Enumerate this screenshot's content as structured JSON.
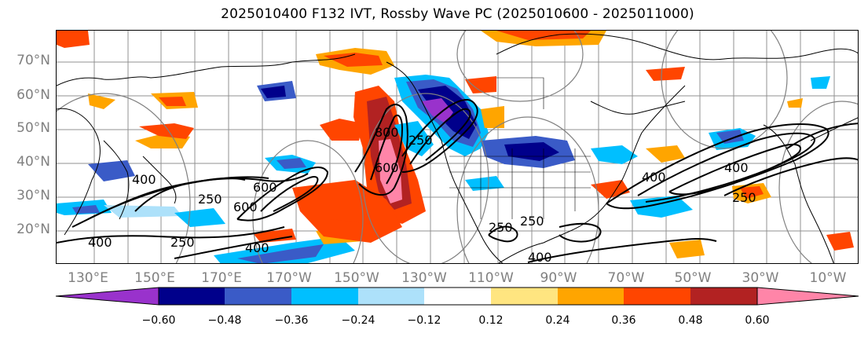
{
  "title": "2025010400 F132 IVT, Rossby Wave PC (2025010600 - 2025011000)",
  "latitude_labels": [
    "70°N",
    "60°N",
    "50°N",
    "40°N",
    "30°N",
    "20°N"
  ],
  "longitude_labels": [
    "130°E",
    "150°E",
    "170°E",
    "170°W",
    "150°W",
    "130°W",
    "110°W",
    "90°W",
    "70°W",
    "50°W",
    "30°W",
    "10°W"
  ],
  "contour_labels": [
    "400",
    "250",
    "600",
    "400",
    "250",
    "600",
    "800",
    "250",
    "400",
    "250",
    "400",
    "250",
    "400",
    "400",
    "250",
    "600"
  ],
  "colorbar": {
    "ticks": [
      "−0.60",
      "−0.48",
      "−0.36",
      "−0.24",
      "−0.12",
      "0.12",
      "0.24",
      "0.36",
      "0.48",
      "0.60"
    ],
    "colors": [
      "#9932CC",
      "#00008B",
      "#3A5BC7",
      "#00BFFF",
      "#ADE1FA",
      "#FFFFFF",
      "#FFE580",
      "#FFA500",
      "#FF4500",
      "#B22222",
      "#FF85A8"
    ]
  },
  "colors": {
    "ocean": "#ffffff",
    "coast": "#000000",
    "grid": "#909090",
    "contour": "#000000",
    "circle": "#808080",
    "label_gray": "#808080"
  }
}
